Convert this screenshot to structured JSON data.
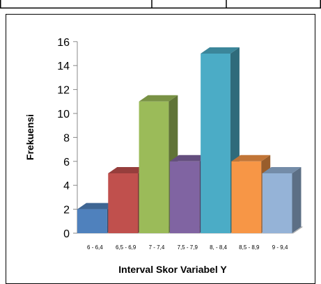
{
  "chart_data": {
    "type": "bar",
    "categories": [
      "6 - 6,4",
      "6,5 - 6,9",
      "7 - 7,4",
      "7,5 - 7,9",
      "8, - 8,4",
      "8,5 - 8,9",
      "9 - 9,4"
    ],
    "values": [
      2,
      5,
      11,
      6,
      15,
      6,
      5
    ],
    "xlabel": "Interval Skor Variabel Y",
    "ylabel": "Frekuensi",
    "ylim": [
      0,
      16
    ],
    "yticks": [
      0,
      2,
      4,
      6,
      8,
      10,
      12,
      14,
      16
    ],
    "grid": false,
    "legend": "none",
    "style": "3d-column",
    "colors": [
      "#4F81BD",
      "#C0504D",
      "#9BBB59",
      "#8064A2",
      "#4BACC6",
      "#F79646",
      "#95B3D7"
    ]
  }
}
